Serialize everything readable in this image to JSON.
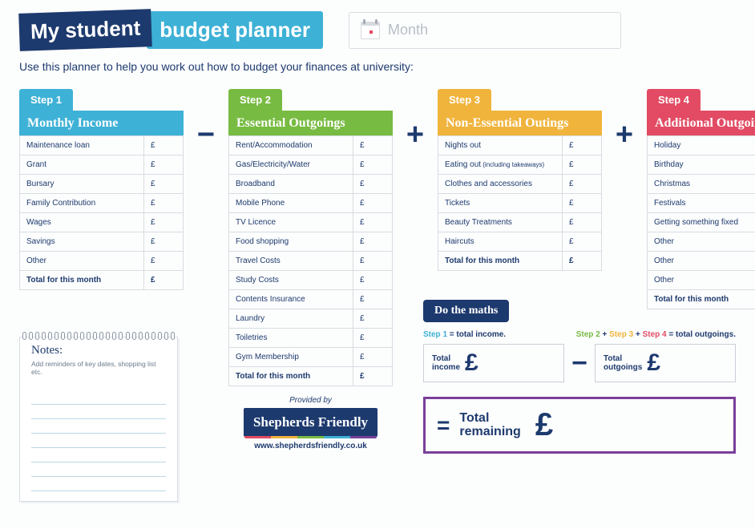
{
  "title": {
    "part1": "My student",
    "part2": "budget planner"
  },
  "month_label": "Month",
  "intro": "Use this planner to help you work out how to budget your finances at university:",
  "currency": "£",
  "columns": [
    {
      "step": "Step 1",
      "header": "Monthly Income",
      "rows": [
        "Maintenance loan",
        "Grant",
        "Bursary",
        "Family Contribution",
        "Wages",
        "Savings",
        "Other"
      ],
      "total": "Total for this month"
    },
    {
      "step": "Step 2",
      "header": "Essential Outgoings",
      "rows": [
        "Rent/Accommodation",
        "Gas/Electricity/Water",
        "Broadband",
        "Mobile Phone",
        "TV Licence",
        "Food shopping",
        "Travel Costs",
        "Study Costs",
        "Contents Insurance",
        "Laundry",
        "Toiletries",
        "Gym Membership"
      ],
      "total": "Total for this month"
    },
    {
      "step": "Step 3",
      "header": "Non-Essential Outings",
      "rows": [
        "Nights out",
        "Eating out",
        "Clothes and accessories",
        "Tickets",
        "Beauty Treatments",
        "Haircuts"
      ],
      "row_notes": {
        "1": "(including takeaways)"
      },
      "total": "Total for this month"
    },
    {
      "step": "Step 4",
      "header": "Additional Outgoings",
      "rows": [
        "Holiday",
        "Birthday",
        "Christmas",
        "Festivals",
        "Getting something fixed",
        "Other",
        "Other",
        "Other"
      ],
      "total": "Total for this month"
    }
  ],
  "operators": [
    "−",
    "+",
    "+"
  ],
  "notes": {
    "title": "Notes:",
    "sub": "Add reminders of key dates, shopping list etc."
  },
  "provided": {
    "label": "Provided by",
    "brand": "Shepherds Friendly",
    "url": "www.shepherdsfriendly.co.uk",
    "stripe": [
      "#e24b63",
      "#f0b43c",
      "#78bb42",
      "#3eb1d6",
      "#7a3f99"
    ]
  },
  "maths": {
    "tag": "Do the maths",
    "line1": {
      "a": "Step 1",
      "eq": " = total income."
    },
    "line2": {
      "a": "Step 2",
      "p1": " + ",
      "b": "Step 3",
      "p2": " + ",
      "c": "Step 4",
      "eq": " = total outgoings."
    },
    "box1_a": "Total",
    "box1_b": "income",
    "box2_a": "Total",
    "box2_b": "outgoings",
    "result_a": "Total",
    "result_b": "remaining",
    "minus": "−",
    "equals": "="
  },
  "colors": {
    "navy": "#1d3a6e",
    "cyan": "#3eb1d6",
    "green": "#78bb42",
    "orange": "#f0b43c",
    "red": "#e24b63",
    "purple": "#7a3f99"
  }
}
